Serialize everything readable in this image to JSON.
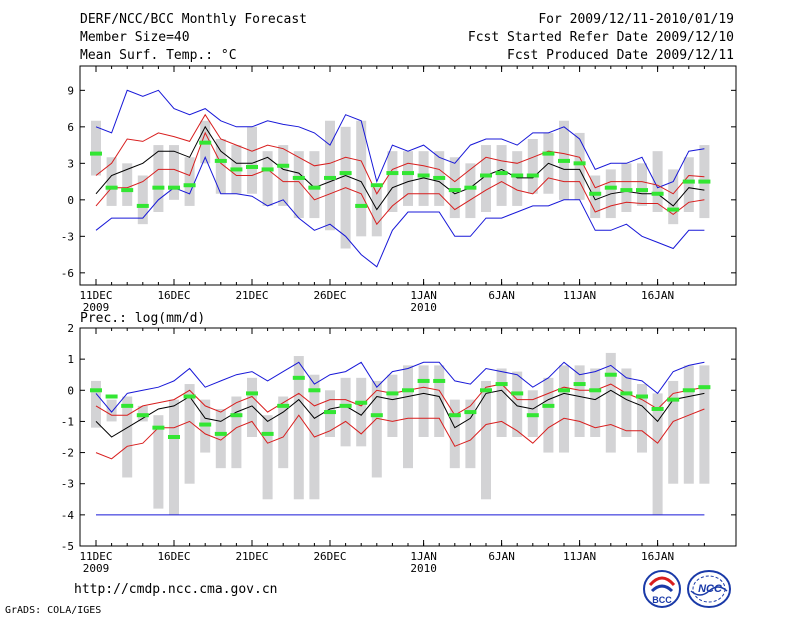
{
  "header": {
    "title": "DERF/NCC/BCC Monthly Forecast",
    "member_size": "Member Size=40",
    "variable": "Mean Surf. Temp.: °C",
    "period": "For 2009/12/11-2010/01/19",
    "fcst_started": "Fcst Started Refer Date 2009/12/10",
    "fcst_produced": "Fcst Produced Date 2009/12/11"
  },
  "footer": {
    "url": "http://cmdp.ncc.cma.gov.cn",
    "grads": "GrADS: COLA/IGES",
    "logo_bcc": "BCC",
    "logo_ncc": "NCC"
  },
  "colors": {
    "box": "#d3d3d5",
    "median": "#33e633",
    "mean": "#000000",
    "std_band": "#d81e1e",
    "extreme": "#1818d8",
    "frame": "#000000"
  },
  "chart_data": [
    {
      "type": "box-plume",
      "title": "Mean Surf. Temp.: °C",
      "xlabel": "",
      "ylabel": "°C",
      "ylim": [
        -7,
        11
      ],
      "yticks": [
        -6,
        -3,
        0,
        3,
        6,
        9
      ],
      "xticks": [
        {
          "day": 1,
          "label": "11DEC",
          "sub": "2009"
        },
        {
          "day": 6,
          "label": "16DEC",
          "sub": ""
        },
        {
          "day": 11,
          "label": "21DEC",
          "sub": ""
        },
        {
          "day": 16,
          "label": "26DEC",
          "sub": ""
        },
        {
          "day": 22,
          "label": "1JAN",
          "sub": "2010"
        },
        {
          "day": 27,
          "label": "6JAN",
          "sub": ""
        },
        {
          "day": 32,
          "label": "11JAN",
          "sub": ""
        },
        {
          "day": 37,
          "label": "16JAN",
          "sub": ""
        }
      ],
      "days": [
        1,
        2,
        3,
        4,
        5,
        6,
        7,
        8,
        9,
        10,
        11,
        12,
        13,
        14,
        15,
        16,
        17,
        18,
        19,
        20,
        21,
        22,
        23,
        24,
        25,
        26,
        27,
        28,
        29,
        30,
        31,
        32,
        33,
        34,
        35,
        36,
        37,
        38,
        39,
        40
      ],
      "series": [
        {
          "name": "max",
          "values": [
            -2.5,
            -1.5,
            -1.5,
            -1.5,
            0.0,
            1.0,
            0.5,
            3.5,
            0.5,
            0.5,
            0.3,
            -0.5,
            0.0,
            -1.5,
            -2.5,
            -2.0,
            -3.0,
            -4.5,
            -5.5,
            -2.5,
            -1.0,
            -1.0,
            -1.0,
            -3.0,
            -3.0,
            -1.5,
            -1.5,
            -1.0,
            -0.5,
            -0.5,
            0.0,
            0.0,
            -2.5,
            -2.5,
            -2.0,
            -3.0,
            -3.5,
            -4.0,
            -2.5,
            -2.5
          ]
        },
        {
          "name": "min",
          "values": [
            6.0,
            5.5,
            9.0,
            8.5,
            9.0,
            7.5,
            7.0,
            7.5,
            6.5,
            6.0,
            6.0,
            6.5,
            6.2,
            6.0,
            5.5,
            4.5,
            7.0,
            6.5,
            1.5,
            4.5,
            4.0,
            4.5,
            3.5,
            3.0,
            4.5,
            5.0,
            5.0,
            4.5,
            5.5,
            5.5,
            6.0,
            5.0,
            2.5,
            3.0,
            3.0,
            3.5,
            1.0,
            1.5,
            4.0,
            4.2
          ]
        },
        {
          "name": "mean",
          "values": [
            0.5,
            2.0,
            2.5,
            3.0,
            4.0,
            4.0,
            3.5,
            6.0,
            4.0,
            3.0,
            3.0,
            3.5,
            2.5,
            2.2,
            1.0,
            1.5,
            2.0,
            1.5,
            -0.8,
            1.0,
            1.5,
            1.8,
            1.5,
            0.5,
            1.0,
            2.0,
            2.5,
            1.8,
            1.8,
            3.0,
            2.5,
            2.5,
            0.0,
            0.5,
            0.7,
            0.5,
            0.5,
            -0.5,
            1.0,
            0.8
          ]
        },
        {
          "name": "mean_plus_std",
          "values": [
            2.0,
            3.0,
            5.0,
            4.8,
            5.5,
            5.2,
            4.8,
            7.0,
            5.0,
            4.5,
            4.0,
            4.5,
            4.2,
            3.5,
            2.8,
            3.0,
            3.5,
            3.2,
            0.5,
            2.5,
            3.0,
            2.8,
            2.5,
            1.5,
            2.5,
            3.5,
            3.2,
            3.0,
            3.5,
            4.0,
            3.8,
            3.5,
            1.0,
            1.5,
            1.5,
            1.5,
            1.2,
            0.5,
            2.0,
            1.9
          ]
        },
        {
          "name": "mean_minus_std",
          "values": [
            -0.5,
            1.0,
            1.0,
            1.5,
            2.5,
            2.5,
            2.0,
            5.5,
            3.0,
            2.0,
            2.0,
            2.5,
            1.5,
            1.5,
            0.0,
            0.5,
            1.0,
            0.5,
            -2.0,
            -0.5,
            0.5,
            0.5,
            0.5,
            -0.8,
            0.0,
            0.8,
            1.5,
            0.8,
            0.5,
            1.8,
            1.5,
            1.5,
            -1.0,
            -0.5,
            -0.2,
            -0.3,
            -0.3,
            -1.2,
            -0.2,
            0.0
          ]
        },
        {
          "name": "median",
          "values": [
            3.8,
            1.0,
            0.8,
            -0.5,
            1.0,
            1.0,
            1.2,
            4.7,
            3.2,
            2.5,
            2.7,
            2.5,
            2.8,
            1.8,
            1.0,
            1.8,
            2.2,
            -0.5,
            1.2,
            2.2,
            2.2,
            2.0,
            1.8,
            0.8,
            1.0,
            2.0,
            2.2,
            2.0,
            2.0,
            3.8,
            3.2,
            3.0,
            0.5,
            1.0,
            0.8,
            0.8,
            0.5,
            -0.8,
            1.5,
            1.5
          ]
        },
        {
          "name": "box_low",
          "values": [
            2.0,
            -0.5,
            -0.5,
            -2.0,
            -1.0,
            0.0,
            -0.5,
            3.0,
            0.5,
            0.5,
            0.5,
            -0.5,
            -0.5,
            -1.5,
            -1.5,
            -2.5,
            -4.0,
            -3.0,
            -3.0,
            -1.0,
            -0.5,
            -0.5,
            -0.5,
            -1.5,
            -1.5,
            -1.0,
            -0.5,
            -0.5,
            0.5,
            0.5,
            0.0,
            0.0,
            -1.5,
            -1.5,
            -1.0,
            -0.5,
            -1.0,
            -2.0,
            -1.0,
            -1.5
          ]
        },
        {
          "name": "box_high",
          "values": [
            6.5,
            3.5,
            3.0,
            2.0,
            4.5,
            4.5,
            3.5,
            6.5,
            5.0,
            4.5,
            6.0,
            4.0,
            4.5,
            4.0,
            4.0,
            6.5,
            6.0,
            6.5,
            1.0,
            4.0,
            4.0,
            4.0,
            4.0,
            3.5,
            3.0,
            4.5,
            4.5,
            4.0,
            5.0,
            5.5,
            6.5,
            5.5,
            2.0,
            2.5,
            3.0,
            3.0,
            4.0,
            2.5,
            3.5,
            4.5
          ]
        }
      ]
    },
    {
      "type": "box-plume",
      "title": "Prec.: log(mm/d)",
      "xlabel": "",
      "ylabel": "log(mm/d)",
      "ylim": [
        -5,
        2
      ],
      "yticks": [
        -5,
        -4,
        -3,
        -2,
        -1,
        0,
        1,
        2
      ],
      "xticks": [
        {
          "day": 1,
          "label": "11DEC",
          "sub": "2009"
        },
        {
          "day": 6,
          "label": "16DEC",
          "sub": ""
        },
        {
          "day": 11,
          "label": "21DEC",
          "sub": ""
        },
        {
          "day": 16,
          "label": "26DEC",
          "sub": ""
        },
        {
          "day": 22,
          "label": "1JAN",
          "sub": "2010"
        },
        {
          "day": 27,
          "label": "6JAN",
          "sub": ""
        },
        {
          "day": 32,
          "label": "11JAN",
          "sub": ""
        },
        {
          "day": 37,
          "label": "16JAN",
          "sub": ""
        }
      ],
      "days": [
        1,
        2,
        3,
        4,
        5,
        6,
        7,
        8,
        9,
        10,
        11,
        12,
        13,
        14,
        15,
        16,
        17,
        18,
        19,
        20,
        21,
        22,
        23,
        24,
        25,
        26,
        27,
        28,
        29,
        30,
        31,
        32,
        33,
        34,
        35,
        36,
        37,
        38,
        39,
        40
      ],
      "series": [
        {
          "name": "max",
          "values": [
            -0.1,
            -0.7,
            -0.1,
            0.0,
            0.1,
            0.3,
            0.7,
            0.1,
            0.3,
            0.5,
            0.6,
            0.3,
            0.6,
            0.9,
            0.2,
            0.5,
            0.6,
            0.9,
            0.1,
            0.6,
            0.7,
            0.9,
            0.9,
            0.3,
            0.2,
            0.7,
            0.6,
            0.5,
            0.1,
            0.4,
            0.9,
            0.5,
            0.6,
            0.8,
            0.4,
            0.3,
            -0.1,
            0.6,
            0.8,
            0.9
          ]
        },
        {
          "name": "min",
          "values": [
            -4,
            -4,
            -4,
            -4,
            -4,
            -4,
            -4,
            -4,
            -4,
            -4,
            -4,
            -4,
            -4,
            -4,
            -4,
            -4,
            -4,
            -4,
            -4,
            -4,
            -4,
            -4,
            -4,
            -4,
            -4,
            -4,
            -4,
            -4,
            -4,
            -4,
            -4,
            -4,
            -4,
            -4,
            -4,
            -4,
            -4,
            -4,
            -4,
            -4
          ]
        },
        {
          "name": "mean",
          "values": [
            -1.0,
            -1.5,
            -1.2,
            -0.9,
            -0.6,
            -0.5,
            -0.2,
            -0.9,
            -1.0,
            -0.7,
            -0.5,
            -1.0,
            -0.7,
            -0.3,
            -0.9,
            -0.6,
            -0.5,
            -0.8,
            -0.2,
            -0.3,
            -0.2,
            -0.1,
            -0.2,
            -1.2,
            -0.9,
            -0.1,
            0.0,
            -0.5,
            -0.6,
            -0.3,
            -0.1,
            -0.2,
            -0.3,
            0.0,
            -0.3,
            -0.5,
            -1.0,
            -0.3,
            -0.2,
            -0.1
          ]
        },
        {
          "name": "mean_plus_std",
          "values": [
            -0.5,
            -0.8,
            -0.8,
            -0.5,
            -0.4,
            -0.3,
            0.0,
            -0.5,
            -0.7,
            -0.4,
            -0.2,
            -0.7,
            -0.4,
            -0.1,
            -0.5,
            -0.3,
            -0.3,
            -0.5,
            0.0,
            -0.1,
            0.0,
            0.1,
            0.0,
            -0.8,
            -0.5,
            0.1,
            0.2,
            -0.3,
            -0.3,
            -0.1,
            0.1,
            0.0,
            0.0,
            0.2,
            -0.1,
            -0.3,
            -0.6,
            -0.1,
            0.0,
            0.1
          ]
        },
        {
          "name": "mean_minus_std",
          "values": [
            -2.0,
            -2.2,
            -1.8,
            -1.7,
            -1.2,
            -1.2,
            -1.0,
            -1.4,
            -1.6,
            -1.2,
            -1.0,
            -1.7,
            -1.5,
            -0.8,
            -1.5,
            -1.3,
            -1.0,
            -1.4,
            -0.9,
            -1.0,
            -0.9,
            -0.9,
            -0.9,
            -1.8,
            -1.6,
            -1.1,
            -1.0,
            -1.3,
            -1.7,
            -1.2,
            -0.9,
            -1.0,
            -1.2,
            -1.1,
            -1.3,
            -1.3,
            -1.7,
            -1.0,
            -0.8,
            -0.6
          ]
        },
        {
          "name": "median",
          "values": [
            0.0,
            -0.2,
            -0.5,
            -0.8,
            -1.2,
            -1.5,
            -0.2,
            -1.1,
            -1.4,
            -0.8,
            -0.1,
            -1.4,
            -0.5,
            0.4,
            0.0,
            -0.7,
            -0.5,
            -0.4,
            -0.8,
            -0.1,
            0.0,
            0.3,
            0.3,
            -0.8,
            -0.7,
            0.0,
            0.2,
            -0.1,
            -0.8,
            -0.5,
            0.0,
            0.2,
            0.0,
            0.5,
            -0.1,
            -0.2,
            -0.6,
            -0.3,
            0.0,
            0.1
          ]
        },
        {
          "name": "box_low",
          "values": [
            -1.2,
            -1.0,
            -2.8,
            -1.0,
            -3.8,
            -4.0,
            -3.0,
            -2.0,
            -2.5,
            -2.5,
            -1.5,
            -3.5,
            -2.5,
            -3.5,
            -3.5,
            -1.5,
            -1.8,
            -1.8,
            -2.8,
            -1.5,
            -2.5,
            -1.5,
            -1.5,
            -2.5,
            -2.5,
            -3.5,
            -1.5,
            -1.5,
            -1.5,
            -2.0,
            -2.0,
            -1.5,
            -1.5,
            -2.0,
            -1.5,
            -2.0,
            -4.0,
            -3.0,
            -3.0,
            -3.0
          ]
        },
        {
          "name": "box_high",
          "values": [
            0.3,
            -0.3,
            -0.2,
            -0.5,
            -0.8,
            -0.3,
            0.2,
            -0.3,
            -0.6,
            -0.2,
            0.4,
            -0.8,
            -0.2,
            1.1,
            0.5,
            0.0,
            0.4,
            0.4,
            0.3,
            0.5,
            0.8,
            0.8,
            0.8,
            -0.3,
            -0.3,
            0.3,
            0.7,
            0.6,
            0.0,
            0.4,
            0.8,
            0.8,
            0.7,
            1.2,
            0.7,
            0.2,
            -0.1,
            0.3,
            0.8,
            0.8
          ]
        }
      ]
    }
  ]
}
